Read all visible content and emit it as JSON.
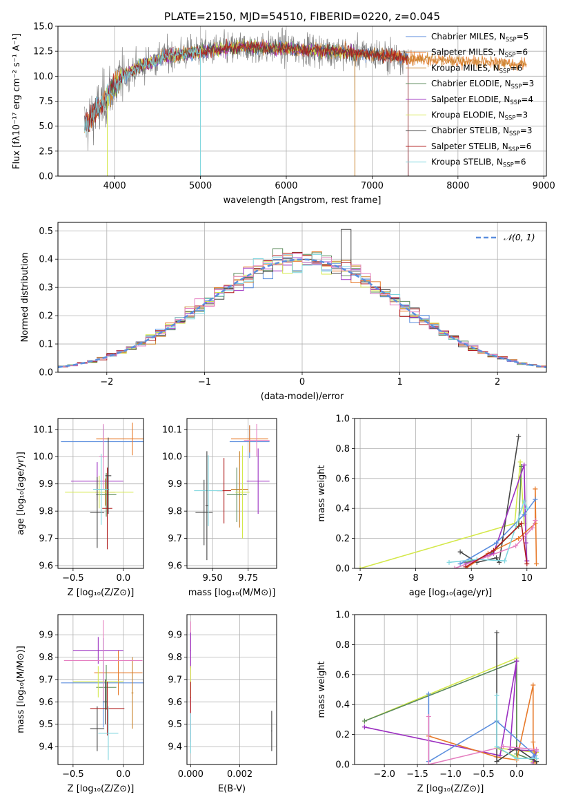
{
  "colors": {
    "Chabrier MILES": "#5b8ede",
    "Salpeter MILES": "#e77a2a",
    "Kroupa MILES": "#c9822a",
    "Chabrier ELODIE": "#5a8a5a",
    "Salpeter ELODIE": "#9b2fc0",
    "Kroupa ELODIE": "#d4e84a",
    "Chabrier STELIB": "#444444",
    "Salpeter STELIB": "#b01c1c",
    "Kroupa STELIB": "#7fd6df",
    "pink": "#e57fc0",
    "data": "#808080",
    "grid": "#b0b0b0"
  },
  "chart_data": [
    {
      "id": "spectrum",
      "type": "line",
      "title": "PLATE=2150, MJD=54510, FIBERID=0220, z=0.045",
      "xlabel": "wavelength [Angstrom, rest frame]",
      "ylabel": "Flux [fλ10⁻¹⁷ erg cm⁻² s⁻¹ A⁻¹]",
      "xlim": [
        3340,
        9030
      ],
      "ylim": [
        0,
        15
      ],
      "xticks": [
        4000,
        5000,
        6000,
        7000,
        8000,
        9000
      ],
      "yticks": [
        0.0,
        2.5,
        5.0,
        7.5,
        10.0,
        12.5,
        15.0
      ],
      "data_range": [
        3650,
        7420
      ],
      "models": [
        {
          "name": "Chabrier MILES",
          "nssp": 5,
          "range": [
            3650,
            7420
          ]
        },
        {
          "name": "Salpeter MILES",
          "nssp": 6,
          "range": [
            3650,
            8800
          ]
        },
        {
          "name": "Kroupa MILES",
          "nssp": 6,
          "range": [
            3650,
            8800
          ]
        },
        {
          "name": "Chabrier ELODIE",
          "nssp": 3,
          "range": [
            3900,
            6800
          ]
        },
        {
          "name": "Salpeter ELODIE",
          "nssp": 4,
          "range": [
            3900,
            6800
          ]
        },
        {
          "name": "Kroupa ELODIE",
          "nssp": 3,
          "range": [
            3900,
            6800
          ]
        },
        {
          "name": "Chabrier STELIB",
          "nssp": 3,
          "range": [
            3650,
            7420
          ]
        },
        {
          "name": "Salpeter STELIB",
          "nssp": 6,
          "range": [
            3650,
            7420
          ]
        },
        {
          "name": "Kroupa STELIB",
          "nssp": 6,
          "range": [
            3650,
            5000
          ]
        }
      ],
      "continuum": [
        [
          3650,
          5.0
        ],
        [
          3800,
          6.5
        ],
        [
          3950,
          8.5
        ],
        [
          4100,
          10.0
        ],
        [
          4300,
          11.0
        ],
        [
          4600,
          12.0
        ],
        [
          5000,
          12.5
        ],
        [
          5500,
          12.9
        ],
        [
          6000,
          12.8
        ],
        [
          6500,
          12.5
        ],
        [
          7000,
          12.2
        ],
        [
          7500,
          11.8
        ],
        [
          8000,
          11.5
        ],
        [
          8500,
          11.3
        ],
        [
          8800,
          11.2
        ]
      ]
    },
    {
      "id": "histogram",
      "type": "step",
      "xlabel": "(data-model)/error",
      "ylabel": "Normed distribution",
      "xlim": [
        -2.5,
        2.5
      ],
      "ylim": [
        0,
        0.53
      ],
      "xticks": [
        -2,
        -1,
        0,
        1,
        2
      ],
      "yticks": [
        0.0,
        0.1,
        0.2,
        0.3,
        0.4,
        0.5
      ],
      "reference": {
        "label": "𝒩(0, 1)",
        "mean": 0,
        "sigma": 1
      },
      "bin_width": 0.1
    },
    {
      "id": "age-vs-Z",
      "type": "scatter",
      "xlabel": "Z [log₁₀(Z/Z⊙)]",
      "ylabel": "age  [log₁₀(age/yr)]",
      "xlim": [
        -0.65,
        0.2
      ],
      "ylim": [
        9.59,
        10.14
      ],
      "xticks": [
        -0.5,
        0.0
      ],
      "yticks": [
        9.6,
        9.7,
        9.8,
        9.9,
        10.0,
        10.1
      ],
      "points": [
        {
          "x": -0.2,
          "y": 10.055,
          "xerr": 0.42,
          "yerr": 0.06,
          "color": "Chabrier MILES"
        },
        {
          "x": 0.09,
          "y": 10.065,
          "xerr": 0.36,
          "yerr": 0.06,
          "color": "Salpeter MILES"
        },
        {
          "x": -0.18,
          "y": 9.87,
          "xerr": 0.1,
          "yerr": 0.05,
          "color": "Kroupa MILES"
        },
        {
          "x": -0.17,
          "y": 9.86,
          "xerr": 0.1,
          "yerr": 0.08,
          "color": "Chabrier ELODIE"
        },
        {
          "x": -0.26,
          "y": 9.91,
          "xerr": 0.26,
          "yerr": 0.07,
          "color": "Salpeter ELODIE"
        },
        {
          "x": -0.24,
          "y": 9.87,
          "xerr": 0.34,
          "yerr": 0.06,
          "color": "Kroupa ELODIE"
        },
        {
          "x": -0.26,
          "y": 9.795,
          "xerr": 0.07,
          "yerr": 0.13,
          "color": "Chabrier STELIB"
        },
        {
          "x": -0.16,
          "y": 9.81,
          "xerr": 0.05,
          "yerr": 0.15,
          "color": "Salpeter STELIB"
        },
        {
          "x": -0.2,
          "y": 10.0,
          "xerr": 0.04,
          "yerr": 0.12,
          "color": "pink"
        },
        {
          "x": -0.22,
          "y": 9.88,
          "xerr": 0.08,
          "yerr": 0.13,
          "color": "Kroupa STELIB"
        },
        {
          "x": -0.15,
          "y": 9.93,
          "xerr": 0.03,
          "yerr": 0.14,
          "color": "Chabrier STELIB"
        }
      ]
    },
    {
      "id": "age-vs-mass",
      "type": "scatter",
      "xlabel": "mass [log₁₀(M/M⊙)]",
      "ylabel": "",
      "xlim": [
        9.32,
        9.95
      ],
      "ylim": [
        9.59,
        10.14
      ],
      "xticks": [
        9.5,
        9.75
      ],
      "yticks": [
        9.6,
        9.7,
        9.8,
        9.9,
        10.0,
        10.1
      ],
      "points": [
        {
          "x": 9.76,
          "y": 10.055,
          "xerr": 0.14,
          "yerr": 0.06,
          "color": "Chabrier MILES"
        },
        {
          "x": 9.76,
          "y": 10.065,
          "xerr": 0.13,
          "yerr": 0.05,
          "color": "Salpeter MILES"
        },
        {
          "x": 9.69,
          "y": 9.88,
          "xerr": 0.06,
          "yerr": 0.14,
          "color": "Kroupa MILES"
        },
        {
          "x": 9.67,
          "y": 9.86,
          "xerr": 0.07,
          "yerr": 0.1,
          "color": "Chabrier ELODIE"
        },
        {
          "x": 9.82,
          "y": 9.91,
          "xerr": 0.08,
          "yerr": 0.12,
          "color": "Salpeter ELODIE"
        },
        {
          "x": 9.71,
          "y": 9.87,
          "xerr": 0.05,
          "yerr": 0.17,
          "color": "Kroupa ELODIE"
        },
        {
          "x": 9.44,
          "y": 9.795,
          "xerr": 0.06,
          "yerr": 0.12,
          "color": "Chabrier STELIB"
        },
        {
          "x": 9.58,
          "y": 9.875,
          "xerr": 0.05,
          "yerr": 0.12,
          "color": "Salpeter STELIB"
        },
        {
          "x": 9.81,
          "y": 10.06,
          "xerr": 0.09,
          "yerr": 0.06,
          "color": "pink"
        },
        {
          "x": 9.47,
          "y": 9.875,
          "xerr": 0.1,
          "yerr": 0.13,
          "color": "Kroupa STELIB"
        },
        {
          "x": 9.46,
          "y": 9.82,
          "xerr": 0.01,
          "yerr": 0.2,
          "color": "Chabrier STELIB"
        }
      ]
    },
    {
      "id": "weight-vs-age",
      "type": "line",
      "xlabel": "age  [log₁₀(age/yr)]",
      "ylabel": "mass weight",
      "xlim": [
        6.9,
        10.35
      ],
      "ylim": [
        0,
        1.0
      ],
      "xticks": [
        7,
        8,
        9,
        10
      ],
      "yticks": [
        0.0,
        0.2,
        0.4,
        0.6,
        0.8,
        1.0
      ],
      "series": [
        {
          "color": "Kroupa ELODIE",
          "x": [
            7.0,
            9.78,
            9.88,
            9.95
          ],
          "y": [
            0.0,
            0.3,
            0.71,
            0.3
          ]
        },
        {
          "color": "Chabrier ELODIE",
          "x": [
            8.9,
            9.3,
            9.85,
            9.9
          ],
          "y": [
            0.04,
            0.08,
            0.28,
            0.68
          ]
        },
        {
          "color": "Chabrier STELIB",
          "x": [
            8.8,
            9.1,
            9.45,
            9.5,
            9.85
          ],
          "y": [
            0.11,
            0.04,
            0.07,
            0.04,
            0.88
          ]
        },
        {
          "color": "Salpeter ELODIE",
          "x": [
            8.9,
            9.4,
            9.95,
            9.98,
            10.0
          ],
          "y": [
            0.03,
            0.1,
            0.69,
            0.17,
            0.05
          ]
        },
        {
          "color": "Salpeter MILES",
          "x": [
            8.9,
            9.3,
            9.85,
            10.15,
            10.15,
            10.17
          ],
          "y": [
            0.0,
            0.1,
            0.2,
            0.3,
            0.53,
            0.03
          ]
        },
        {
          "color": "Chabrier MILES",
          "x": [
            8.8,
            9.45,
            9.95,
            10.15
          ],
          "y": [
            0.03,
            0.17,
            0.36,
            0.46
          ]
        },
        {
          "color": "pink",
          "x": [
            8.7,
            9.3,
            9.8,
            10.1,
            10.15
          ],
          "y": [
            0.0,
            0.08,
            0.15,
            0.27,
            0.32
          ]
        },
        {
          "color": "Kroupa STELIB",
          "x": [
            8.6,
            9.1,
            9.6,
            9.95,
            10.0
          ],
          "y": [
            0.04,
            0.06,
            0.05,
            0.45,
            0.4
          ]
        },
        {
          "color": "Salpeter STELIB",
          "x": [
            8.9,
            9.4,
            9.9,
            10.0
          ],
          "y": [
            0.01,
            0.12,
            0.3,
            0.03
          ]
        }
      ]
    },
    {
      "id": "mass-vs-Z",
      "type": "scatter",
      "xlabel": "Z [log₁₀(Z/Z⊙)]",
      "ylabel": "mass [log₁₀(M/M⊙)]",
      "xlim": [
        -0.65,
        0.2
      ],
      "ylim": [
        9.32,
        9.99
      ],
      "xticks": [
        -0.5,
        0.0
      ],
      "yticks": [
        9.4,
        9.5,
        9.6,
        9.7,
        9.8,
        9.9
      ],
      "points": [
        {
          "x": -0.2,
          "y": 9.685,
          "xerr": 0.42,
          "yerr": 0.2,
          "color": "Chabrier MILES"
        },
        {
          "x": -0.05,
          "y": 9.73,
          "xerr": 0.24,
          "yerr": 0.1,
          "color": "Salpeter MILES"
        },
        {
          "x": 0.09,
          "y": 9.64,
          "xerr": 0.01,
          "yerr": 0.16,
          "color": "Kroupa MILES"
        },
        {
          "x": -0.17,
          "y": 9.665,
          "xerr": 0.1,
          "yerr": 0.1,
          "color": "Chabrier ELODIE"
        },
        {
          "x": -0.25,
          "y": 9.83,
          "xerr": 0.25,
          "yerr": 0.06,
          "color": "Salpeter ELODIE"
        },
        {
          "x": -0.25,
          "y": 9.69,
          "xerr": 0.25,
          "yerr": 0.07,
          "color": "Kroupa ELODIE"
        },
        {
          "x": -0.26,
          "y": 9.48,
          "xerr": 0.07,
          "yerr": 0.1,
          "color": "Chabrier STELIB"
        },
        {
          "x": -0.16,
          "y": 9.57,
          "xerr": 0.17,
          "yerr": 0.12,
          "color": "Salpeter STELIB"
        },
        {
          "x": -0.2,
          "y": 9.785,
          "xerr": 0.39,
          "yerr": 0.18,
          "color": "pink"
        },
        {
          "x": -0.15,
          "y": 9.46,
          "xerr": 0.1,
          "yerr": 0.12,
          "color": "Kroupa STELIB"
        },
        {
          "x": -0.18,
          "y": 9.6,
          "xerr": 0.02,
          "yerr": 0.1,
          "color": "Chabrier STELIB"
        }
      ]
    },
    {
      "id": "mass-vs-EBV",
      "type": "scatter",
      "xlabel": "E(B-V)",
      "ylabel": "",
      "xlim": [
        -0.00015,
        0.0035
      ],
      "ylim": [
        9.32,
        9.99
      ],
      "xticks": [
        0.0,
        0.002
      ],
      "yticks": [
        9.4,
        9.5,
        9.6,
        9.7,
        9.8,
        9.9
      ],
      "points": [
        {
          "x": 0.0,
          "y": 9.69,
          "xerr": 2e-05,
          "yerr": 0.27,
          "color": "pink"
        },
        {
          "x": 0.0,
          "y": 9.83,
          "xerr": 2e-05,
          "yerr": 0.08,
          "color": "Salpeter ELODIE"
        },
        {
          "x": 0.0,
          "y": 9.69,
          "xerr": 2e-05,
          "yerr": 0.07,
          "color": "Kroupa ELODIE"
        },
        {
          "x": 0.0,
          "y": 9.62,
          "xerr": 2e-05,
          "yerr": 0.07,
          "color": "Salpeter STELIB"
        },
        {
          "x": 0.0,
          "y": 9.46,
          "xerr": 2e-05,
          "yerr": 0.09,
          "color": "Kroupa STELIB"
        },
        {
          "x": 0.0033,
          "y": 9.47,
          "xerr": 2e-05,
          "yerr": 0.09,
          "color": "Chabrier STELIB"
        }
      ]
    },
    {
      "id": "weight-vs-Z",
      "type": "line",
      "xlabel": "Z [log₁₀(Z/Z⊙)]",
      "ylabel": "mass weight",
      "xlim": [
        -2.45,
        0.45
      ],
      "ylim": [
        0,
        1.0
      ],
      "xticks": [
        -2.0,
        -1.5,
        -1.0,
        -0.5,
        0.0
      ],
      "yticks": [
        0.0,
        0.2,
        0.4,
        0.6,
        0.8,
        1.0
      ],
      "series": [
        {
          "color": "Kroupa ELODIE",
          "x": [
            -2.3,
            0.0,
            0.0,
            -0.3,
            0.3,
            0.25
          ],
          "y": [
            0.29,
            0.71,
            0.05,
            0.11,
            0.08,
            0.02
          ]
        },
        {
          "color": "Chabrier ELODIE",
          "x": [
            -2.3,
            0.0,
            0.0,
            0.3
          ],
          "y": [
            0.29,
            0.69,
            0.07,
            0.02
          ]
        },
        {
          "color": "Salpeter ELODIE",
          "x": [
            -2.3,
            -0.25,
            0.0,
            -0.1,
            0.3,
            0.25
          ],
          "y": [
            0.25,
            0.06,
            0.69,
            0.1,
            0.09,
            0.01
          ]
        },
        {
          "color": "Salpeter MILES",
          "x": [
            -1.33,
            -0.3,
            0.0,
            0.25,
            0.25,
            0.28
          ],
          "y": [
            0.19,
            0.05,
            0.03,
            0.53,
            0.15,
            0.01
          ]
        },
        {
          "color": "Chabrier MILES",
          "x": [
            -1.33,
            -1.33,
            -0.3,
            0.28,
            0.25
          ],
          "y": [
            0.47,
            0.02,
            0.29,
            0.06,
            0.05
          ]
        },
        {
          "color": "Chabrier STELIB",
          "x": [
            -0.3,
            -0.3,
            0.0,
            0.3
          ],
          "y": [
            0.88,
            0.02,
            0.11,
            0.02
          ]
        },
        {
          "color": "pink",
          "x": [
            -1.33,
            -1.33,
            -0.2,
            0.3
          ],
          "y": [
            0.32,
            0.0,
            0.12,
            0.1
          ]
        },
        {
          "color": "Kroupa STELIB",
          "x": [
            -0.3,
            -0.3,
            0.0,
            0.3
          ],
          "y": [
            0.46,
            0.12,
            0.04,
            0.04
          ]
        }
      ]
    }
  ]
}
